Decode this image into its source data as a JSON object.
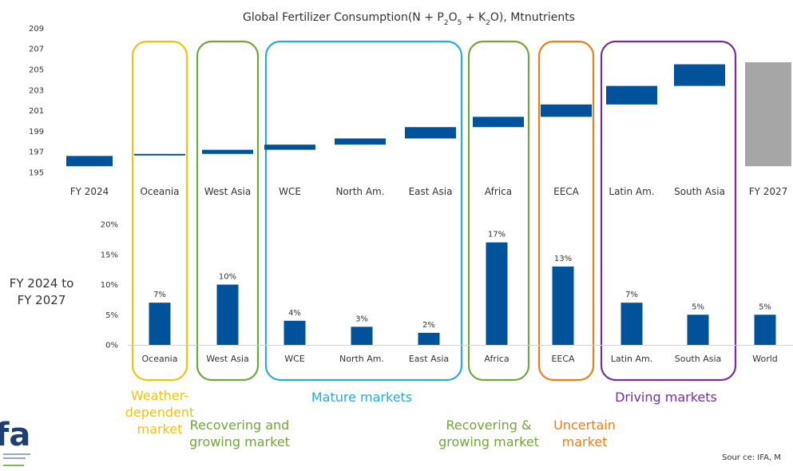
{
  "colors": {
    "bar": "#00539b",
    "total_bar": "#a6a6a6",
    "weather": "#f0c30f",
    "recovering": "#71a63a",
    "mature": "#29a9e0",
    "uncertain": "#ef7d1a",
    "driving": "#7030a0"
  },
  "title_parts": [
    "Global Fertilizer Consumption(N + P",
    "2",
    "O",
    "5",
    " + K",
    "2",
    "O), Mtnutrients"
  ],
  "side_label": [
    "FY 2024 to",
    "FY 2027"
  ],
  "source": "Sour ce: IFA, M",
  "logo": {
    "text": "fa"
  },
  "groups": [
    {
      "key": "weather",
      "color_key": "weather",
      "label_lines": [
        "Weather-",
        "dependent",
        "market"
      ]
    },
    {
      "key": "recovering1",
      "color_key": "recovering",
      "label_lines": [
        "Recovering and",
        "growing market"
      ]
    },
    {
      "key": "mature",
      "color_key": "mature",
      "label_lines": [
        "Mature markets"
      ]
    },
    {
      "key": "recovering2",
      "color_key": "recovering",
      "label_lines": [
        "Recovering &",
        "growing market"
      ]
    },
    {
      "key": "uncertain",
      "color_key": "uncertain",
      "label_lines": [
        "Uncertain",
        "market"
      ]
    },
    {
      "key": "driving",
      "color_key": "driving",
      "label_lines": [
        "Driving markets"
      ]
    }
  ],
  "chart_data": [
    {
      "type": "bar",
      "subtype": "waterfall",
      "title": "Global Fertilizer Consumption(N + P2O5 + K2O), Mtnutrients",
      "categories": [
        "FY 2024",
        "Oceania",
        "West Asia",
        "WCE",
        "North Am.",
        "East Asia",
        "Africa",
        "EECA",
        "Latin Am.",
        "South Asia",
        "FY 2027"
      ],
      "ranges": [
        [
          195.6,
          196.6
        ],
        [
          196.7,
          196.8
        ],
        [
          196.8,
          197.2
        ],
        [
          197.2,
          197.7
        ],
        [
          197.7,
          198.3
        ],
        [
          198.3,
          199.4
        ],
        [
          199.4,
          200.4
        ],
        [
          200.4,
          201.6
        ],
        [
          201.6,
          203.4
        ],
        [
          203.4,
          205.5
        ],
        [
          195.6,
          205.7
        ]
      ],
      "ylim": [
        194,
        210
      ],
      "yticks": [
        195,
        197,
        199,
        201,
        203,
        205,
        207,
        209
      ]
    },
    {
      "type": "bar",
      "categories": [
        "Oceania",
        "West Asia",
        "WCE",
        "North Am.",
        "East Asia",
        "Africa",
        "EECA",
        "Latin Am.",
        "South Asia",
        "World"
      ],
      "values": [
        7,
        10,
        4,
        3,
        2,
        17,
        13,
        7,
        5,
        5
      ],
      "value_labels": [
        "7%",
        "10%",
        "4%",
        "3%",
        "2%",
        "17%",
        "13%",
        "7%",
        "5%",
        "5%"
      ],
      "ylim": [
        0,
        20
      ],
      "yticks": [
        "0%",
        "5%",
        "10%",
        "15%",
        "20%"
      ]
    }
  ]
}
